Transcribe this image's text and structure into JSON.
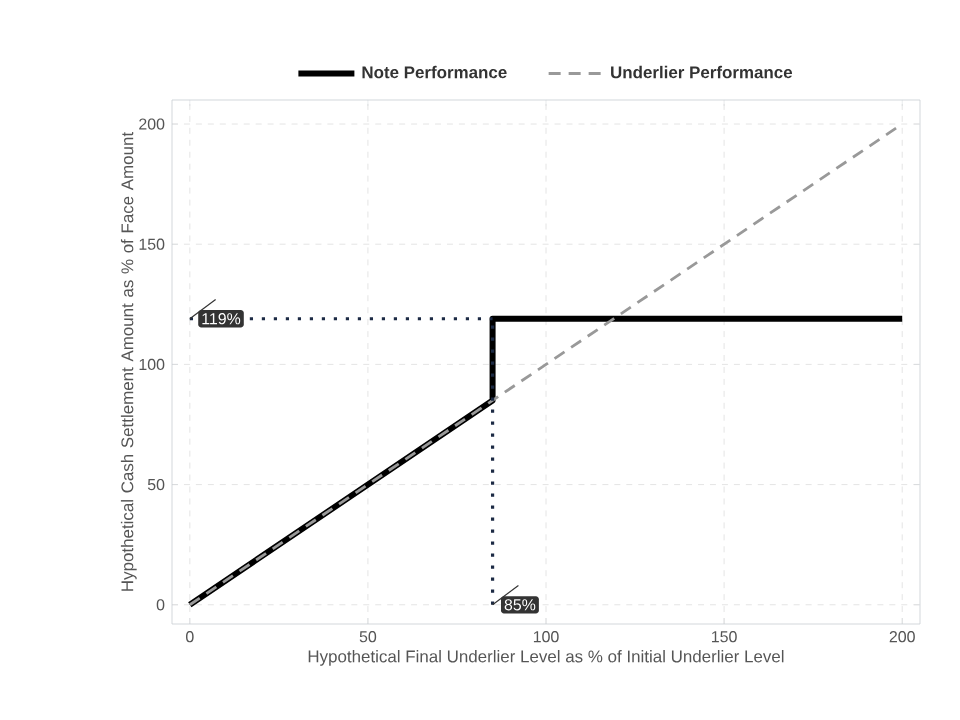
{
  "chart_data": {
    "type": "line",
    "xlabel": "Hypothetical Final Underlier Level as % of Initial Underlier Level",
    "ylabel": "Hypothetical Cash Settlement Amount as % of Face Amount",
    "xlim": [
      -5,
      205
    ],
    "ylim": [
      -8,
      210
    ],
    "xticks": [
      0,
      50,
      100,
      150,
      200
    ],
    "yticks": [
      0,
      50,
      100,
      150,
      200
    ],
    "grid": true,
    "legend": "top",
    "series": [
      {
        "name": "Note Performance",
        "color": "#000000",
        "line_style": "solid",
        "x": [
          0,
          85,
          85,
          200
        ],
        "values": [
          0,
          85,
          119,
          119
        ]
      },
      {
        "name": "Underlier Performance",
        "color": "#999999",
        "line_style": "dashed",
        "x": [
          0,
          200
        ],
        "values": [
          0,
          200
        ]
      },
      {
        "color": "#1c2a44",
        "line_style": "dotted",
        "x": [
          0,
          85
        ],
        "values": [
          119,
          119
        ]
      },
      {
        "color": "#1c2a44",
        "line_style": "dotted",
        "x": [
          85,
          85
        ],
        "values": [
          0,
          119
        ]
      }
    ],
    "annotations": [
      {
        "text": "119%",
        "x": 0,
        "y": 119
      },
      {
        "text": "85%",
        "x": 85,
        "y": 0
      }
    ]
  }
}
